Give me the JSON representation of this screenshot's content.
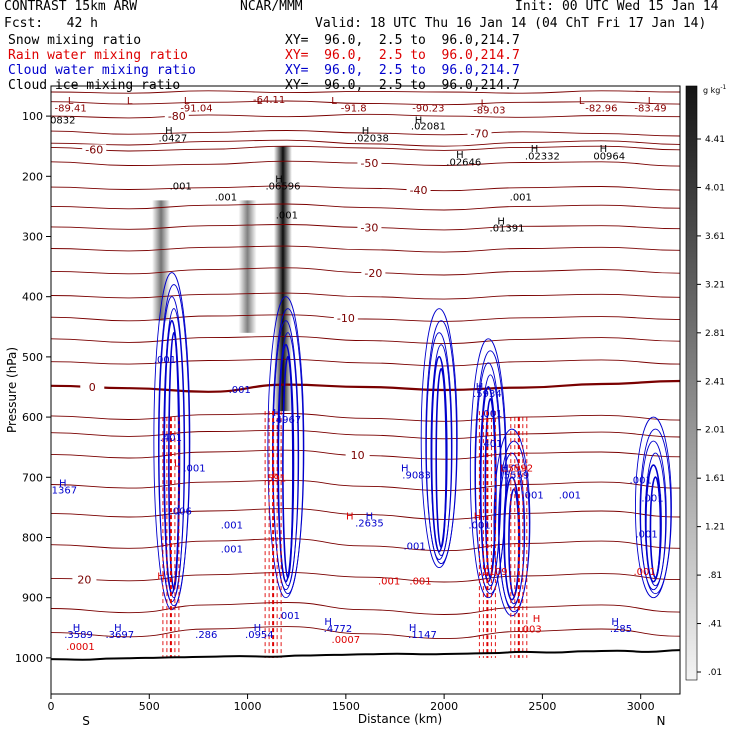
{
  "header": {
    "model": "CONTRAST 15km ARW",
    "org": "NCAR/MMM",
    "init": "Init: 00 UTC Wed 15 Jan 14",
    "fcst": "Fcst:   42 h",
    "valid": "Valid: 18 UTC Thu 16 Jan 14 (04 ChT Fri 17 Jan 14)"
  },
  "fields": [
    {
      "name": "Snow mixing ratio",
      "xy": "XY=  96.0,  2.5 to  96.0,214.7",
      "color": "#000000"
    },
    {
      "name": "Rain water mixing ratio",
      "xy": "XY=  96.0,  2.5 to  96.0,214.7",
      "color": "#dd0000"
    },
    {
      "name": "Cloud water mixing ratio",
      "xy": "XY=  96.0,  2.5 to  96.0,214.7",
      "color": "#0000cc"
    },
    {
      "name": "Cloud ice mixing ratio",
      "xy": "XY=  96.0,  2.5 to  96.0,214.7",
      "color": "#000000"
    }
  ],
  "colorbar": {
    "unit": "g kg",
    "unit_exp": "-1",
    "ticks": [
      "4.41",
      "4.01",
      "3.61",
      "3.21",
      "2.81",
      "2.41",
      "2.01",
      "1.61",
      "1.21",
      ".81",
      ".41",
      ".01"
    ]
  },
  "chart_data": {
    "type": "cross-section contour",
    "xlabel": "Distance (km)",
    "ylabel": "Pressure (hPa)",
    "xlim": [
      0,
      3200
    ],
    "ylim": [
      1060,
      50
    ],
    "x_ticks": [
      0,
      500,
      1000,
      1500,
      2000,
      2500,
      3000
    ],
    "y_ticks": [
      100,
      200,
      300,
      400,
      500,
      600,
      700,
      800,
      900,
      1000
    ],
    "left_end": "S",
    "right_end": "N",
    "temp_contours": [
      {
        "label": "-80",
        "p": [
          100,
          103,
          98,
          101,
          97,
          100,
          102,
          99,
          101
        ],
        "lx": 640
      },
      {
        "label": "-70",
        "p": [
          125,
          130,
          127,
          124,
          128,
          131,
          126,
          129,
          133
        ],
        "lx": 2180
      },
      {
        "label": "-60",
        "p": [
          152,
          158,
          155,
          150,
          153,
          157,
          152,
          150,
          156
        ],
        "lx": 220
      },
      {
        "label": "-50",
        "p": [
          176,
          182,
          180,
          175,
          178,
          182,
          177,
          176,
          183
        ],
        "lx": 1620
      },
      {
        "label": "-40",
        "p": [
          218,
          222,
          219,
          216,
          220,
          224,
          219,
          217,
          223
        ],
        "lx": 1870
      },
      {
        "label": "-30",
        "p": [
          284,
          288,
          282,
          280,
          285,
          289,
          283,
          282,
          287
        ],
        "lx": 1620
      },
      {
        "label": "-20",
        "p": [
          358,
          362,
          355,
          352,
          360,
          364,
          358,
          355,
          361
        ],
        "lx": 1640
      },
      {
        "label": "-10",
        "p": [
          434,
          440,
          432,
          430,
          437,
          441,
          435,
          433,
          438
        ],
        "lx": 1500
      },
      {
        "label": "0",
        "p": [
          548,
          552,
          558,
          546,
          550,
          555,
          551,
          545,
          540
        ],
        "lx": 210
      },
      {
        "label": "10",
        "p": [
          662,
          668,
          658,
          655,
          664,
          670,
          660,
          658,
          666
        ],
        "lx": 1560
      },
      {
        "label": "20",
        "p": [
          868,
          872,
          862,
          858,
          866,
          874,
          864,
          860,
          870
        ],
        "lx": 170
      }
    ],
    "extra_isotherms": [
      {
        "p": [
          60,
          62,
          58,
          61,
          59,
          60,
          62,
          58,
          60
        ]
      },
      {
        "p": [
          76,
          80,
          77,
          75,
          79,
          81,
          77,
          76,
          80
        ]
      },
      {
        "p": [
          145,
          148,
          142,
          140,
          146,
          150,
          144,
          141,
          147
        ]
      },
      {
        "p": [
          250,
          254,
          248,
          246,
          252,
          256,
          250,
          248,
          253
        ]
      },
      {
        "p": [
          320,
          324,
          318,
          316,
          322,
          326,
          320,
          318,
          323
        ]
      },
      {
        "p": [
          398,
          402,
          396,
          394,
          400,
          404,
          398,
          396,
          401
        ]
      },
      {
        "p": [
          470,
          476,
          468,
          466,
          473,
          478,
          471,
          468,
          474
        ]
      },
      {
        "p": [
          508,
          512,
          506,
          504,
          510,
          515,
          508,
          505,
          512
        ]
      },
      {
        "p": [
          598,
          604,
          596,
          594,
          602,
          607,
          600,
          597,
          605
        ]
      },
      {
        "p": [
          626,
          632,
          624,
          622,
          630,
          636,
          628,
          625,
          633
        ]
      },
      {
        "p": [
          712,
          718,
          708,
          705,
          715,
          722,
          712,
          708,
          718
        ]
      },
      {
        "p": [
          760,
          766,
          756,
          752,
          762,
          770,
          760,
          756,
          766
        ]
      },
      {
        "p": [
          812,
          818,
          806,
          802,
          814,
          822,
          810,
          806,
          818
        ]
      },
      {
        "p": [
          918,
          925,
          912,
          908,
          920,
          928,
          916,
          912,
          924
        ]
      },
      {
        "p": [
          958,
          965,
          952,
          948,
          960,
          968,
          956,
          952,
          964
        ]
      }
    ],
    "terrain_p": [
      1002,
      1003,
      1001,
      1000,
      999,
      998,
      997,
      998,
      996,
      995,
      994,
      993,
      994,
      993,
      992,
      990,
      991,
      989,
      988,
      990,
      987
    ],
    "snow_shading": [
      {
        "x": 560,
        "p_top": 240,
        "p_bottom": 440,
        "alpha": 0.55
      },
      {
        "x": 1000,
        "p_top": 240,
        "p_bottom": 460,
        "alpha": 0.5
      },
      {
        "x": 1180,
        "p_top": 150,
        "p_bottom": 590,
        "alpha": 0.95
      }
    ],
    "cloud_water_towers": [
      {
        "x": 620,
        "p_top": 360,
        "p_bottom": 920
      },
      {
        "x": 1200,
        "p_top": 400,
        "p_bottom": 900
      },
      {
        "x": 1980,
        "p_top": 420,
        "p_bottom": 850
      },
      {
        "x": 2230,
        "p_top": 470,
        "p_bottom": 900
      },
      {
        "x": 2350,
        "p_top": 620,
        "p_bottom": 930
      },
      {
        "x": 3070,
        "p_top": 600,
        "p_bottom": 900
      }
    ],
    "rain_shafts": [
      {
        "x": 610,
        "p_top": 600,
        "p_bottom": 1000
      },
      {
        "x": 1130,
        "p_top": 590,
        "p_bottom": 1000
      },
      {
        "x": 2220,
        "p_top": 590,
        "p_bottom": 1000
      },
      {
        "x": 2380,
        "p_top": 600,
        "p_bottom": 1000
      }
    ],
    "high_low_labels": [
      {
        "t": "L",
        "x": 100,
        "p": 80,
        "c": "#880000"
      },
      {
        "t": "-89.41",
        "x": 100,
        "p": 92,
        "c": "#880000"
      },
      {
        "t": "L",
        "x": 400,
        "p": 80,
        "c": "#880000"
      },
      {
        "t": "L",
        "x": 690,
        "p": 80,
        "c": "#880000"
      },
      {
        "t": "-91.04",
        "x": 740,
        "p": 92,
        "c": "#880000"
      },
      {
        "t": "L",
        "x": 1060,
        "p": 80,
        "c": "#880000"
      },
      {
        "t": "-64.11",
        "x": 1110,
        "p": 78,
        "c": "#880000"
      },
      {
        "t": "L",
        "x": 1440,
        "p": 80,
        "c": "#880000"
      },
      {
        "t": "-91.8",
        "x": 1540,
        "p": 92,
        "c": "#880000"
      },
      {
        "t": "-90.23",
        "x": 1920,
        "p": 92,
        "c": "#880000"
      },
      {
        "t": "L",
        "x": 2200,
        "p": 84,
        "c": "#880000"
      },
      {
        "t": "-89.03",
        "x": 2230,
        "p": 96,
        "c": "#880000"
      },
      {
        "t": "L",
        "x": 2700,
        "p": 80,
        "c": "#880000"
      },
      {
        "t": "-82.96",
        "x": 2800,
        "p": 92,
        "c": "#880000"
      },
      {
        "t": "L",
        "x": 3050,
        "p": 80,
        "c": "#880000"
      },
      {
        "t": "-83.49",
        "x": 3050,
        "p": 92,
        "c": "#880000"
      },
      {
        "t": "0832",
        "x": 60,
        "p": 112,
        "c": "#000000"
      },
      {
        "t": "H",
        "x": 600,
        "p": 130,
        "c": "#000000"
      },
      {
        "t": ".0427",
        "x": 620,
        "p": 142,
        "c": "#000000"
      },
      {
        "t": "H",
        "x": 1600,
        "p": 130,
        "c": "#000000"
      },
      {
        "t": ".02038",
        "x": 1630,
        "p": 142,
        "c": "#000000"
      },
      {
        "t": "H",
        "x": 1870,
        "p": 112,
        "c": "#000000"
      },
      {
        "t": ".02081",
        "x": 1920,
        "p": 122,
        "c": "#000000"
      },
      {
        "t": "H",
        "x": 2080,
        "p": 170,
        "c": "#000000"
      },
      {
        "t": ".02646",
        "x": 2100,
        "p": 182,
        "c": "#000000"
      },
      {
        "t": "H",
        "x": 2460,
        "p": 160,
        "c": "#000000"
      },
      {
        "t": ".02332",
        "x": 2500,
        "p": 172,
        "c": "#000000"
      },
      {
        "t": "H",
        "x": 2810,
        "p": 160,
        "c": "#000000"
      },
      {
        "t": "00964",
        "x": 2840,
        "p": 172,
        "c": "#000000"
      },
      {
        "t": ".001",
        "x": 660,
        "p": 222,
        "c": "#000000"
      },
      {
        "t": ".001",
        "x": 890,
        "p": 240,
        "c": "#000000"
      },
      {
        "t": "H",
        "x": 1160,
        "p": 210,
        "c": "#000000"
      },
      {
        "t": ".06596",
        "x": 1180,
        "p": 222,
        "c": "#000000"
      },
      {
        "t": ".001",
        "x": 1200,
        "p": 270,
        "c": "#000000"
      },
      {
        "t": ".001",
        "x": 2390,
        "p": 240,
        "c": "#000000"
      },
      {
        "t": "H",
        "x": 2290,
        "p": 280,
        "c": "#000000"
      },
      {
        "t": ".01391",
        "x": 2320,
        "p": 292,
        "c": "#000000"
      },
      {
        "t": ".001",
        "x": 580,
        "p": 510,
        "c": "#0000cc"
      },
      {
        "t": ".001",
        "x": 960,
        "p": 560,
        "c": "#0000cc"
      },
      {
        "t": "H",
        "x": 1150,
        "p": 598,
        "c": "#0000cc"
      },
      {
        "t": ".4967",
        "x": 1200,
        "p": 610,
        "c": "#0000cc"
      },
      {
        "t": "H",
        "x": 2180,
        "p": 555,
        "c": "#0000cc"
      },
      {
        "t": ".5934",
        "x": 2220,
        "p": 567,
        "c": "#0000cc"
      },
      {
        "t": ".001",
        "x": 2240,
        "p": 600,
        "c": "#0000cc"
      },
      {
        "t": ".401",
        "x": 610,
        "p": 640,
        "c": "#0000cc"
      },
      {
        "t": ".401",
        "x": 2240,
        "p": 650,
        "c": "#0000cc"
      },
      {
        "t": ".001",
        "x": 730,
        "p": 690,
        "c": "#0000cc"
      },
      {
        "t": "H",
        "x": 60,
        "p": 715,
        "c": "#0000cc"
      },
      {
        "t": ".1367",
        "x": 60,
        "p": 727,
        "c": "#0000cc"
      },
      {
        "t": "H",
        "x": 1800,
        "p": 690,
        "c": "#0000cc"
      },
      {
        "t": ".9083",
        "x": 1860,
        "p": 702,
        "c": "#0000cc"
      },
      {
        "t": "H",
        "x": 2310,
        "p": 690,
        "c": "#0000cc"
      },
      {
        "t": ".5559",
        "x": 2360,
        "p": 702,
        "c": "#0000cc"
      },
      {
        "t": ".001",
        "x": 2450,
        "p": 735,
        "c": "#0000cc"
      },
      {
        "t": ".001",
        "x": 2640,
        "p": 735,
        "c": "#0000cc"
      },
      {
        "t": ".001",
        "x": 3000,
        "p": 710,
        "c": "#0000cc"
      },
      {
        "t": ".001",
        "x": 3060,
        "p": 740,
        "c": "#0000cc"
      },
      {
        "t": ".006",
        "x": 660,
        "p": 762,
        "c": "#0000cc"
      },
      {
        "t": ".001",
        "x": 920,
        "p": 785,
        "c": "#0000cc"
      },
      {
        "t": ".001",
        "x": 920,
        "p": 825,
        "c": "#0000cc"
      },
      {
        "t": "H",
        "x": 1620,
        "p": 770,
        "c": "#0000cc"
      },
      {
        "t": ".2635",
        "x": 1620,
        "p": 782,
        "c": "#0000cc"
      },
      {
        "t": ".001",
        "x": 1850,
        "p": 820,
        "c": "#0000cc"
      },
      {
        "t": ".001",
        "x": 2180,
        "p": 785,
        "c": "#0000cc"
      },
      {
        "t": ".001",
        "x": 3030,
        "p": 800,
        "c": "#0000cc"
      },
      {
        "t": "H",
        "x": 130,
        "p": 955,
        "c": "#0000cc"
      },
      {
        "t": ".3589",
        "x": 140,
        "p": 967,
        "c": "#0000cc"
      },
      {
        "t": "H",
        "x": 340,
        "p": 955,
        "c": "#0000cc"
      },
      {
        "t": ".3697",
        "x": 350,
        "p": 967,
        "c": "#0000cc"
      },
      {
        "t": ".286",
        "x": 790,
        "p": 967,
        "c": "#0000cc"
      },
      {
        "t": "H",
        "x": 1050,
        "p": 955,
        "c": "#0000cc"
      },
      {
        "t": ".0954",
        "x": 1060,
        "p": 967,
        "c": "#0000cc"
      },
      {
        "t": ".001",
        "x": 1210,
        "p": 935,
        "c": "#0000cc"
      },
      {
        "t": "H",
        "x": 1410,
        "p": 945,
        "c": "#0000cc"
      },
      {
        "t": ".4772",
        "x": 1460,
        "p": 957,
        "c": "#0000cc"
      },
      {
        "t": "H",
        "x": 1840,
        "p": 955,
        "c": "#0000cc"
      },
      {
        "t": ".1147",
        "x": 1890,
        "p": 967,
        "c": "#0000cc"
      },
      {
        "t": "H",
        "x": 2870,
        "p": 945,
        "c": "#0000cc"
      },
      {
        "t": ".285",
        "x": 2900,
        "p": 957,
        "c": "#0000cc"
      },
      {
        "t": "L",
        "x": 640,
        "p": 682,
        "c": "#dd0000"
      },
      {
        "t": "L",
        "x": 1140,
        "p": 695,
        "c": "#dd0000"
      },
      {
        "t": ".591",
        "x": 1140,
        "p": 707,
        "c": "#dd0000"
      },
      {
        "t": "L",
        "x": 2300,
        "p": 690,
        "c": "#dd0000"
      },
      {
        "t": "H",
        "x": 1520,
        "p": 770,
        "c": "#dd0000"
      },
      {
        "t": "H",
        "x": 2170,
        "p": 770,
        "c": "#dd0000"
      },
      {
        "t": ".1109",
        "x": 2250,
        "p": 862,
        "c": "#dd0000"
      },
      {
        "t": ".001",
        "x": 1720,
        "p": 878,
        "c": "#dd0000"
      },
      {
        "t": ".001",
        "x": 1880,
        "p": 878,
        "c": "#dd0000"
      },
      {
        "t": ".001",
        "x": 3020,
        "p": 862,
        "c": "#dd0000"
      },
      {
        "t": ".0001",
        "x": 150,
        "p": 987,
        "c": "#dd0000"
      },
      {
        "t": ".0007",
        "x": 1500,
        "p": 975,
        "c": "#dd0000"
      },
      {
        "t": ".003",
        "x": 2440,
        "p": 958,
        "c": "#dd0000"
      },
      {
        "t": "H",
        "x": 2470,
        "p": 940,
        "c": "#dd0000"
      },
      {
        "t": "H",
        "x": 560,
        "p": 870,
        "c": "#dd0000"
      },
      {
        "t": ".5592",
        "x": 2380,
        "p": 690,
        "c": "#dd0000"
      }
    ]
  }
}
